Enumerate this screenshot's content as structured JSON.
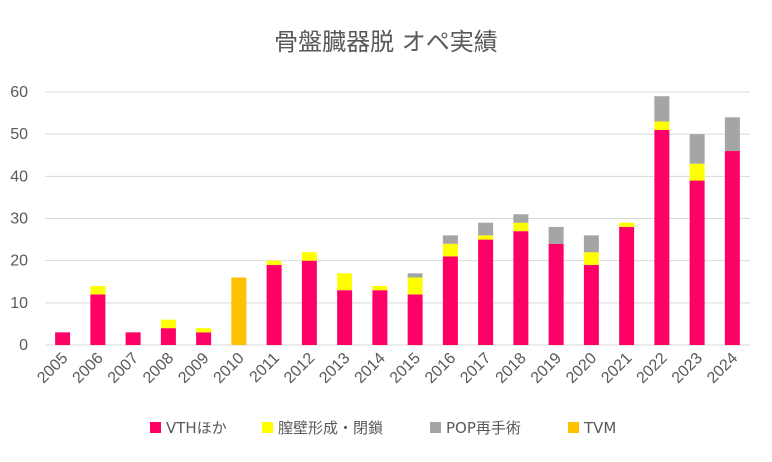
{
  "chart_data": {
    "type": "bar",
    "stacked": true,
    "title": "骨盤臓器脱 オペ実績",
    "xlabel": "",
    "ylabel": "",
    "ylim": [
      0,
      60
    ],
    "yticks": [
      "0",
      "10",
      "20",
      "30",
      "40",
      "50",
      "60"
    ],
    "grid": true,
    "legend_position": "bottom",
    "categories": [
      "2005",
      "2006",
      "2007",
      "2008",
      "2009",
      "2010",
      "2011",
      "2012",
      "2013",
      "2014",
      "2015",
      "2016",
      "2017",
      "2018",
      "2019",
      "2020",
      "2021",
      "2022",
      "2023",
      "2024"
    ],
    "series": [
      {
        "name": "VTHほか",
        "color": "#ff0066",
        "values": [
          3,
          12,
          3,
          4,
          3,
          0,
          19,
          20,
          13,
          13,
          12,
          21,
          25,
          27,
          24,
          19,
          28,
          51,
          39,
          46
        ]
      },
      {
        "name": "膣壁形成・閉鎖",
        "color": "#ffff00",
        "values": [
          0,
          2,
          0,
          2,
          1,
          0,
          1,
          2,
          4,
          1,
          4,
          3,
          1,
          2,
          0,
          3,
          1,
          2,
          4,
          0
        ]
      },
      {
        "name": "POP再手術",
        "color": "#a5a5a5",
        "values": [
          0,
          0,
          0,
          0,
          0,
          0,
          0,
          0,
          0,
          0,
          1,
          2,
          3,
          2,
          4,
          4,
          0,
          6,
          7,
          8
        ]
      },
      {
        "name": "TVM",
        "color": "#ffc000",
        "values": [
          0,
          0,
          0,
          0,
          0,
          16,
          0,
          0,
          0,
          0,
          0,
          0,
          0,
          0,
          0,
          0,
          0,
          0,
          0,
          0
        ]
      }
    ]
  }
}
